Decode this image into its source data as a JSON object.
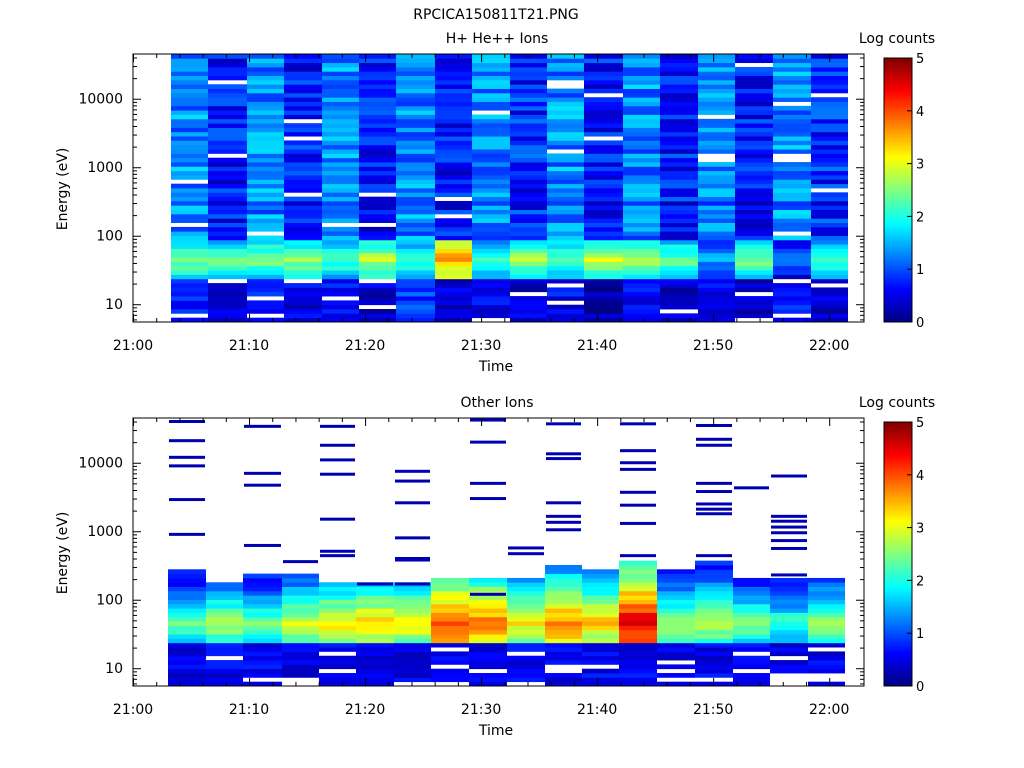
{
  "page": {
    "title": "RPCICA150811T21.PNG"
  },
  "chart_data": [
    {
      "type": "heatmap",
      "title": "H+ He++ Ions",
      "xlabel": "Time",
      "ylabel": "Energy (eV)",
      "x_ticks": [
        "21:00",
        "21:10",
        "21:20",
        "21:30",
        "21:40",
        "21:50",
        "22:00"
      ],
      "x_range_minutes": [
        0,
        63
      ],
      "y_ticks": [
        "10",
        "100",
        "1000",
        "10000"
      ],
      "y_scale": "log",
      "y_range": [
        5.5,
        45000
      ],
      "colorbar": {
        "title": "Log counts",
        "ticks": [
          "0",
          "1",
          "2",
          "3",
          "4",
          "5"
        ],
        "range": [
          0,
          5
        ]
      },
      "columns": [
        {
          "start": 3.3,
          "end": 6.5,
          "seed": 11,
          "hi": 1.3,
          "lo": 0.8,
          "peak": 2.6
        },
        {
          "start": 6.5,
          "end": 9.8,
          "seed": 23,
          "hi": 0.7,
          "lo": 0.5,
          "peak": 2.4
        },
        {
          "start": 9.8,
          "end": 13.0,
          "seed": 37,
          "hi": 1.3,
          "lo": 0.8,
          "peak": 2.5
        },
        {
          "start": 13.0,
          "end": 16.3,
          "seed": 41,
          "hi": 0.7,
          "lo": 0.5,
          "peak": 2.6
        },
        {
          "start": 16.3,
          "end": 19.5,
          "seed": 53,
          "hi": 1.3,
          "lo": 0.7,
          "peak": 2.3
        },
        {
          "start": 19.5,
          "end": 22.7,
          "seed": 67,
          "hi": 0.7,
          "lo": 0.4,
          "peak": 2.8
        },
        {
          "start": 22.7,
          "end": 26.0,
          "seed": 71,
          "hi": 1.3,
          "lo": 0.9,
          "peak": 2.2
        },
        {
          "start": 26.0,
          "end": 29.2,
          "seed": 83,
          "hi": 0.7,
          "lo": 0.4,
          "peak": 3.6
        },
        {
          "start": 29.2,
          "end": 32.5,
          "seed": 97,
          "hi": 1.3,
          "lo": 0.6,
          "peak": 2.3
        },
        {
          "start": 32.5,
          "end": 35.7,
          "seed": 101,
          "hi": 0.8,
          "lo": 0.4,
          "peak": 2.7
        },
        {
          "start": 35.7,
          "end": 38.9,
          "seed": 113,
          "hi": 1.3,
          "lo": 0.6,
          "peak": 2.4
        },
        {
          "start": 38.9,
          "end": 42.2,
          "seed": 127,
          "hi": 0.7,
          "lo": 0.3,
          "peak": 2.9
        },
        {
          "start": 42.2,
          "end": 45.4,
          "seed": 131,
          "hi": 1.3,
          "lo": 0.6,
          "peak": 2.8
        },
        {
          "start": 45.4,
          "end": 48.7,
          "seed": 149,
          "hi": 0.7,
          "lo": 0.4,
          "peak": 2.4
        },
        {
          "start": 48.7,
          "end": 51.9,
          "seed": 151,
          "hi": 1.2,
          "lo": 0.6,
          "peak": 1.5
        },
        {
          "start": 51.9,
          "end": 55.2,
          "seed": 163,
          "hi": 0.7,
          "lo": 0.4,
          "peak": 2.5
        },
        {
          "start": 55.2,
          "end": 58.4,
          "seed": 173,
          "hi": 1.3,
          "lo": 0.7,
          "peak": 1.3
        },
        {
          "start": 58.4,
          "end": 61.6,
          "seed": 181,
          "hi": 0.8,
          "lo": 0.4,
          "peak": 2.3
        }
      ]
    },
    {
      "type": "heatmap",
      "title": "Other Ions",
      "xlabel": "Time",
      "ylabel": "Energy (eV)",
      "x_ticks": [
        "21:00",
        "21:10",
        "21:20",
        "21:30",
        "21:40",
        "21:50",
        "22:00"
      ],
      "x_range_minutes": [
        0,
        63
      ],
      "y_ticks": [
        "10",
        "100",
        "1000",
        "10000"
      ],
      "y_scale": "log",
      "y_range": [
        5.5,
        45000
      ],
      "colorbar": {
        "title": "Log counts",
        "ticks": [
          "0",
          "1",
          "2",
          "3",
          "4",
          "5"
        ],
        "range": [
          0,
          5
        ]
      },
      "columns": [
        {
          "start": 3.0,
          "end": 6.3,
          "seed": 211,
          "top": 270,
          "peak": 2.4,
          "lines": [
            40000,
            21000,
            12000,
            9000,
            2900,
            900
          ]
        },
        {
          "start": 6.3,
          "end": 9.5,
          "seed": 223,
          "top": 190,
          "peak": 2.8,
          "lines": []
        },
        {
          "start": 9.5,
          "end": 12.8,
          "seed": 227,
          "top": 250,
          "peak": 2.5,
          "lines": [
            34000,
            7000,
            4700,
            620
          ]
        },
        {
          "start": 12.8,
          "end": 16.0,
          "seed": 229,
          "top": 225,
          "peak": 2.9,
          "lines": [
            360
          ]
        },
        {
          "start": 16.0,
          "end": 19.2,
          "seed": 233,
          "top": 190,
          "peak": 3.2,
          "lines": [
            34000,
            18000,
            11000,
            6800,
            1500,
            510,
            440
          ]
        },
        {
          "start": 19.2,
          "end": 22.5,
          "seed": 239,
          "top": 180,
          "peak": 3.4,
          "lines": [
            170
          ]
        },
        {
          "start": 22.5,
          "end": 25.7,
          "seed": 241,
          "top": 190,
          "peak": 3.2,
          "lines": [
            7500,
            5400,
            2600,
            800,
            400,
            380,
            170
          ]
        },
        {
          "start": 25.7,
          "end": 29.0,
          "seed": 251,
          "top": 205,
          "peak": 4.1,
          "lines": []
        },
        {
          "start": 29.0,
          "end": 32.2,
          "seed": 257,
          "top": 200,
          "peak": 3.9,
          "lines": [
            42000,
            20000,
            5000,
            3000,
            120
          ]
        },
        {
          "start": 32.2,
          "end": 35.5,
          "seed": 263,
          "top": 220,
          "peak": 3.2,
          "lines": [
            570,
            470
          ]
        },
        {
          "start": 35.5,
          "end": 38.7,
          "seed": 269,
          "top": 330,
          "peak": 3.8,
          "lines": [
            37000,
            13500,
            11500,
            2600,
            1650,
            1350,
            1050
          ]
        },
        {
          "start": 38.7,
          "end": 41.9,
          "seed": 271,
          "top": 260,
          "peak": 3.4,
          "lines": []
        },
        {
          "start": 41.9,
          "end": 45.2,
          "seed": 277,
          "top": 380,
          "peak": 4.6,
          "lines": [
            37000,
            15000,
            10000,
            8000,
            3700,
            2400,
            1300,
            440
          ]
        },
        {
          "start": 45.2,
          "end": 48.4,
          "seed": 281,
          "top": 290,
          "peak": 2.8,
          "lines": []
        },
        {
          "start": 48.4,
          "end": 51.7,
          "seed": 283,
          "top": 390,
          "peak": 2.9,
          "lines": [
            35000,
            22000,
            18000,
            5000,
            3800,
            2500,
            2100,
            1800,
            440
          ]
        },
        {
          "start": 51.7,
          "end": 54.9,
          "seed": 293,
          "top": 200,
          "peak": 2.6,
          "lines": [
            4300
          ]
        },
        {
          "start": 54.9,
          "end": 58.2,
          "seed": 307,
          "top": 220,
          "peak": 2.2,
          "lines": [
            6400,
            1650,
            1400,
            1150,
            950,
            730,
            560,
            230
          ]
        },
        {
          "start": 58.2,
          "end": 61.4,
          "seed": 311,
          "top": 215,
          "peak": 2.7,
          "lines": []
        }
      ]
    }
  ]
}
